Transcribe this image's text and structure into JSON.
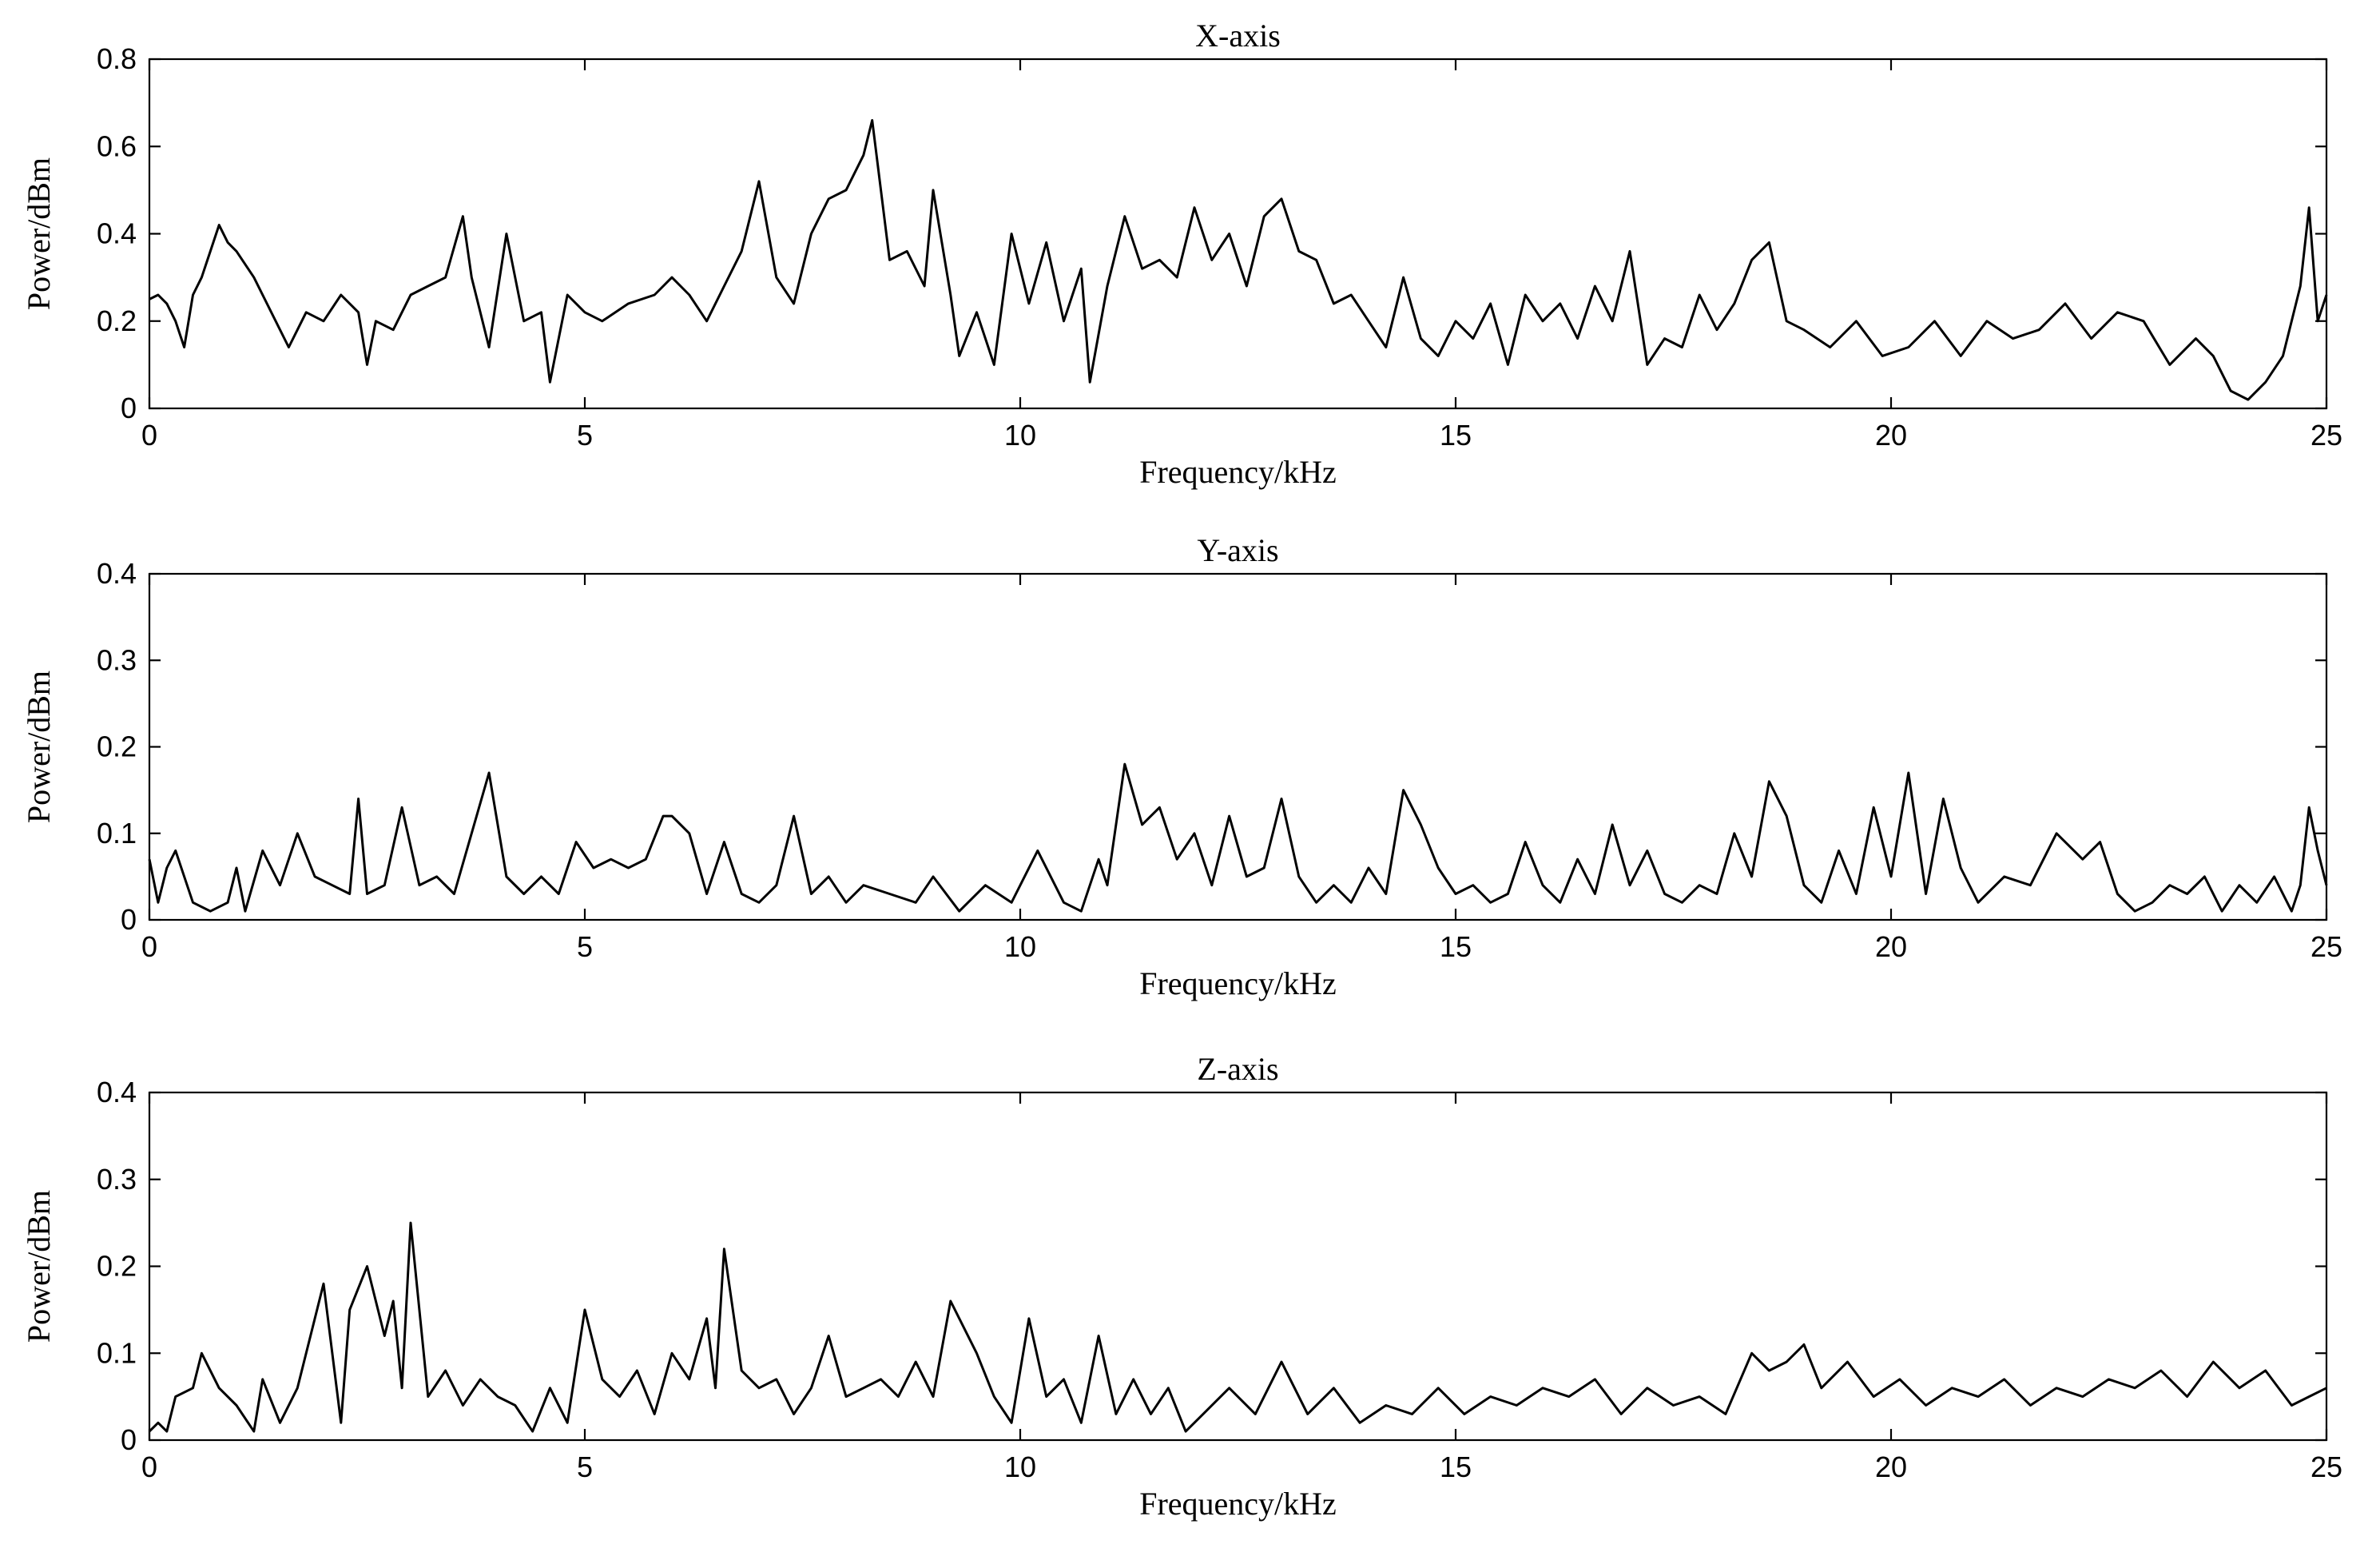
{
  "chart_data": [
    {
      "type": "line",
      "title": "X-axis",
      "xlabel": "Frequency/kHz",
      "ylabel": "Power/dBm",
      "xlim": [
        0,
        25
      ],
      "ylim": [
        0,
        0.8
      ],
      "xticks": [
        "0",
        "5",
        "10",
        "15",
        "20",
        "25"
      ],
      "yticks": [
        "0",
        "0.2",
        "0.4",
        "0.6",
        "0.8"
      ],
      "grid": false,
      "series": [
        {
          "x": [
            0,
            0.1,
            0.2,
            0.3,
            0.4,
            0.5,
            0.6,
            0.7,
            0.8,
            0.9,
            1.0,
            1.2,
            1.4,
            1.6,
            1.8,
            2.0,
            2.2,
            2.4,
            2.5,
            2.6,
            2.8,
            3.0,
            3.2,
            3.4,
            3.6,
            3.7,
            3.9,
            4.1,
            4.3,
            4.5,
            4.6,
            4.8,
            5.0,
            5.2,
            5.5,
            5.8,
            6.0,
            6.2,
            6.4,
            6.6,
            6.8,
            7.0,
            7.2,
            7.4,
            7.6,
            7.8,
            8.0,
            8.2,
            8.3,
            8.5,
            8.7,
            8.9,
            9.0,
            9.2,
            9.3,
            9.5,
            9.7,
            9.9,
            10.1,
            10.3,
            10.5,
            10.7,
            10.8,
            11.0,
            11.2,
            11.4,
            11.6,
            11.8,
            12.0,
            12.2,
            12.4,
            12.6,
            12.8,
            13.0,
            13.2,
            13.4,
            13.6,
            13.8,
            14.0,
            14.2,
            14.4,
            14.6,
            14.8,
            15.0,
            15.2,
            15.4,
            15.6,
            15.8,
            16.0,
            16.2,
            16.4,
            16.6,
            16.8,
            17.0,
            17.2,
            17.4,
            17.6,
            17.8,
            18.0,
            18.2,
            18.4,
            18.6,
            18.8,
            19.0,
            19.3,
            19.6,
            19.9,
            20.2,
            20.5,
            20.8,
            21.1,
            21.4,
            21.7,
            22.0,
            22.3,
            22.6,
            22.9,
            23.2,
            23.5,
            23.7,
            23.9,
            24.1,
            24.3,
            24.5,
            24.7,
            24.8,
            24.9,
            25.0
          ],
          "y": [
            0.25,
            0.26,
            0.24,
            0.2,
            0.14,
            0.26,
            0.3,
            0.36,
            0.42,
            0.38,
            0.36,
            0.3,
            0.22,
            0.14,
            0.22,
            0.2,
            0.26,
            0.22,
            0.1,
            0.2,
            0.18,
            0.26,
            0.28,
            0.3,
            0.44,
            0.3,
            0.14,
            0.4,
            0.2,
            0.22,
            0.06,
            0.26,
            0.22,
            0.2,
            0.24,
            0.26,
            0.3,
            0.26,
            0.2,
            0.28,
            0.36,
            0.52,
            0.3,
            0.24,
            0.4,
            0.48,
            0.5,
            0.58,
            0.66,
            0.34,
            0.36,
            0.28,
            0.5,
            0.26,
            0.12,
            0.22,
            0.1,
            0.4,
            0.24,
            0.38,
            0.2,
            0.32,
            0.06,
            0.28,
            0.44,
            0.32,
            0.34,
            0.3,
            0.46,
            0.34,
            0.4,
            0.28,
            0.44,
            0.48,
            0.36,
            0.34,
            0.24,
            0.26,
            0.2,
            0.14,
            0.3,
            0.16,
            0.12,
            0.2,
            0.16,
            0.24,
            0.1,
            0.26,
            0.2,
            0.24,
            0.16,
            0.28,
            0.2,
            0.36,
            0.1,
            0.16,
            0.14,
            0.26,
            0.18,
            0.24,
            0.34,
            0.38,
            0.2,
            0.18,
            0.14,
            0.2,
            0.12,
            0.14,
            0.2,
            0.12,
            0.2,
            0.16,
            0.18,
            0.24,
            0.16,
            0.22,
            0.2,
            0.1,
            0.16,
            0.12,
            0.04,
            0.02,
            0.06,
            0.12,
            0.28,
            0.46,
            0.2,
            0.26
          ]
        }
      ]
    },
    {
      "type": "line",
      "title": "Y-axis",
      "xlabel": "Frequency/kHz",
      "ylabel": "Power/dBm",
      "xlim": [
        0,
        25
      ],
      "ylim": [
        0,
        0.4
      ],
      "xticks": [
        "0",
        "5",
        "10",
        "15",
        "20",
        "25"
      ],
      "yticks": [
        "0",
        "0.1",
        "0.2",
        "0.3",
        "0.4"
      ],
      "grid": false,
      "series": [
        {
          "x": [
            0,
            0.1,
            0.2,
            0.3,
            0.5,
            0.7,
            0.9,
            1.0,
            1.1,
            1.3,
            1.5,
            1.7,
            1.9,
            2.1,
            2.3,
            2.4,
            2.5,
            2.7,
            2.9,
            3.1,
            3.3,
            3.5,
            3.7,
            3.9,
            4.1,
            4.3,
            4.5,
            4.7,
            4.9,
            5.1,
            5.3,
            5.5,
            5.7,
            5.9,
            6.0,
            6.2,
            6.4,
            6.6,
            6.8,
            7.0,
            7.2,
            7.4,
            7.6,
            7.8,
            8.0,
            8.2,
            8.5,
            8.8,
            9.0,
            9.3,
            9.6,
            9.9,
            10.2,
            10.5,
            10.7,
            10.9,
            11.0,
            11.2,
            11.4,
            11.6,
            11.8,
            12.0,
            12.2,
            12.4,
            12.6,
            12.8,
            13.0,
            13.2,
            13.4,
            13.6,
            13.8,
            14.0,
            14.2,
            14.4,
            14.6,
            14.8,
            15.0,
            15.2,
            15.4,
            15.6,
            15.8,
            16.0,
            16.2,
            16.4,
            16.6,
            16.8,
            17.0,
            17.2,
            17.4,
            17.6,
            17.8,
            18.0,
            18.2,
            18.4,
            18.6,
            18.8,
            19.0,
            19.2,
            19.4,
            19.6,
            19.8,
            20.0,
            20.2,
            20.4,
            20.6,
            20.8,
            21.0,
            21.3,
            21.6,
            21.9,
            22.2,
            22.4,
            22.6,
            22.8,
            23.0,
            23.2,
            23.4,
            23.6,
            23.8,
            24.0,
            24.2,
            24.4,
            24.6,
            24.7,
            24.8,
            24.9,
            25.0
          ],
          "y": [
            0.07,
            0.02,
            0.06,
            0.08,
            0.02,
            0.01,
            0.02,
            0.06,
            0.01,
            0.08,
            0.04,
            0.1,
            0.05,
            0.04,
            0.03,
            0.14,
            0.03,
            0.04,
            0.13,
            0.04,
            0.05,
            0.03,
            0.1,
            0.17,
            0.05,
            0.03,
            0.05,
            0.03,
            0.09,
            0.06,
            0.07,
            0.06,
            0.07,
            0.12,
            0.12,
            0.1,
            0.03,
            0.09,
            0.03,
            0.02,
            0.04,
            0.12,
            0.03,
            0.05,
            0.02,
            0.04,
            0.03,
            0.02,
            0.05,
            0.01,
            0.04,
            0.02,
            0.08,
            0.02,
            0.01,
            0.07,
            0.04,
            0.18,
            0.11,
            0.13,
            0.07,
            0.1,
            0.04,
            0.12,
            0.05,
            0.06,
            0.14,
            0.05,
            0.02,
            0.04,
            0.02,
            0.06,
            0.03,
            0.15,
            0.11,
            0.06,
            0.03,
            0.04,
            0.02,
            0.03,
            0.09,
            0.04,
            0.02,
            0.07,
            0.03,
            0.11,
            0.04,
            0.08,
            0.03,
            0.02,
            0.04,
            0.03,
            0.1,
            0.05,
            0.16,
            0.12,
            0.04,
            0.02,
            0.08,
            0.03,
            0.13,
            0.05,
            0.17,
            0.03,
            0.14,
            0.06,
            0.02,
            0.05,
            0.04,
            0.1,
            0.07,
            0.09,
            0.03,
            0.01,
            0.02,
            0.04,
            0.03,
            0.05,
            0.01,
            0.04,
            0.02,
            0.05,
            0.01,
            0.04,
            0.13,
            0.08,
            0.04
          ]
        }
      ]
    },
    {
      "type": "line",
      "title": "Z-axis",
      "xlabel": "Frequency/kHz",
      "ylabel": "Power/dBm",
      "xlim": [
        0,
        25
      ],
      "ylim": [
        0,
        0.4
      ],
      "xticks": [
        "0",
        "5",
        "10",
        "15",
        "20",
        "25"
      ],
      "yticks": [
        "0",
        "0.1",
        "0.2",
        "0.3",
        "0.4"
      ],
      "grid": false,
      "series": [
        {
          "x": [
            0,
            0.1,
            0.2,
            0.3,
            0.5,
            0.6,
            0.8,
            1.0,
            1.2,
            1.3,
            1.5,
            1.7,
            1.8,
            2.0,
            2.2,
            2.3,
            2.5,
            2.7,
            2.8,
            2.9,
            3.0,
            3.2,
            3.4,
            3.6,
            3.8,
            4.0,
            4.2,
            4.4,
            4.6,
            4.8,
            5.0,
            5.2,
            5.4,
            5.6,
            5.8,
            6.0,
            6.2,
            6.4,
            6.5,
            6.6,
            6.8,
            7.0,
            7.2,
            7.4,
            7.6,
            7.8,
            8.0,
            8.2,
            8.4,
            8.6,
            8.8,
            9.0,
            9.2,
            9.3,
            9.5,
            9.7,
            9.9,
            10.1,
            10.3,
            10.5,
            10.7,
            10.9,
            11.1,
            11.3,
            11.5,
            11.7,
            11.9,
            12.1,
            12.4,
            12.7,
            13.0,
            13.3,
            13.6,
            13.9,
            14.2,
            14.5,
            14.8,
            15.1,
            15.4,
            15.7,
            16.0,
            16.3,
            16.6,
            16.9,
            17.2,
            17.5,
            17.8,
            18.1,
            18.4,
            18.6,
            18.8,
            19.0,
            19.2,
            19.5,
            19.8,
            20.1,
            20.4,
            20.7,
            21.0,
            21.3,
            21.6,
            21.9,
            22.2,
            22.5,
            22.8,
            23.1,
            23.4,
            23.7,
            24.0,
            24.3,
            24.6,
            24.8,
            25.0
          ],
          "y": [
            0.01,
            0.02,
            0.01,
            0.05,
            0.06,
            0.1,
            0.06,
            0.04,
            0.01,
            0.07,
            0.02,
            0.06,
            0.1,
            0.18,
            0.02,
            0.15,
            0.2,
            0.12,
            0.16,
            0.06,
            0.25,
            0.05,
            0.08,
            0.04,
            0.07,
            0.05,
            0.04,
            0.01,
            0.06,
            0.02,
            0.15,
            0.07,
            0.05,
            0.08,
            0.03,
            0.1,
            0.07,
            0.14,
            0.06,
            0.22,
            0.08,
            0.06,
            0.07,
            0.03,
            0.06,
            0.12,
            0.05,
            0.06,
            0.07,
            0.05,
            0.09,
            0.05,
            0.16,
            0.14,
            0.1,
            0.05,
            0.02,
            0.14,
            0.05,
            0.07,
            0.02,
            0.12,
            0.03,
            0.07,
            0.03,
            0.06,
            0.01,
            0.03,
            0.06,
            0.03,
            0.09,
            0.03,
            0.06,
            0.02,
            0.04,
            0.03,
            0.06,
            0.03,
            0.05,
            0.04,
            0.06,
            0.05,
            0.07,
            0.03,
            0.06,
            0.04,
            0.05,
            0.03,
            0.1,
            0.08,
            0.09,
            0.11,
            0.06,
            0.09,
            0.05,
            0.07,
            0.04,
            0.06,
            0.05,
            0.07,
            0.04,
            0.06,
            0.05,
            0.07,
            0.06,
            0.08,
            0.05,
            0.09,
            0.06,
            0.08,
            0.04,
            0.05,
            0.06
          ]
        }
      ]
    }
  ]
}
